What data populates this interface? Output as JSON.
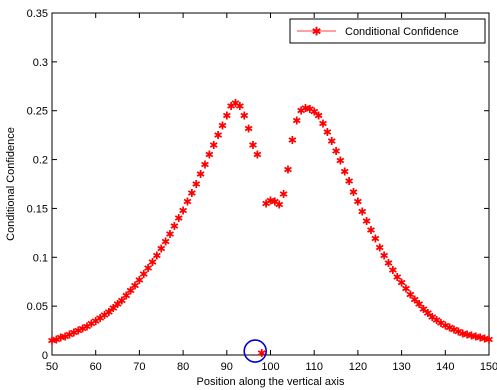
{
  "chart_data": {
    "type": "scatter",
    "title": "",
    "xlabel": "Position along the vertical axis",
    "ylabel": "Conditional Confidence",
    "xlim": [
      50,
      150
    ],
    "ylim": [
      0,
      0.35
    ],
    "xticks": [
      50,
      60,
      70,
      80,
      90,
      100,
      110,
      120,
      130,
      140,
      150
    ],
    "xtick_labels": [
      "50",
      "60",
      "70",
      "80",
      "90",
      "100",
      "110",
      "120",
      "130",
      "140",
      "150"
    ],
    "yticks": [
      0,
      0.05,
      0.1,
      0.15,
      0.2,
      0.25,
      0.3,
      0.35
    ],
    "ytick_labels": [
      "0",
      "0.05",
      "0.1",
      "0.15",
      "0.2",
      "0.25",
      "0.3",
      "0.35"
    ],
    "grid": false,
    "legend_position": "top-right",
    "series": [
      {
        "name": "Conditional Confidence",
        "color": "#ff0000",
        "marker": "asterisk",
        "x": [
          50,
          51,
          52,
          53,
          54,
          55,
          56,
          57,
          58,
          59,
          60,
          61,
          62,
          63,
          64,
          65,
          66,
          67,
          68,
          69,
          70,
          71,
          72,
          73,
          74,
          75,
          76,
          77,
          78,
          79,
          80,
          81,
          82,
          83,
          84,
          85,
          86,
          87,
          88,
          89,
          90,
          91,
          92,
          93,
          94,
          95,
          96,
          97,
          98,
          99,
          100,
          101,
          102,
          103,
          104,
          105,
          106,
          107,
          108,
          109,
          110,
          111,
          112,
          113,
          114,
          115,
          116,
          117,
          118,
          119,
          120,
          121,
          122,
          123,
          124,
          125,
          126,
          127,
          128,
          129,
          130,
          131,
          132,
          133,
          134,
          135,
          136,
          137,
          138,
          139,
          140,
          141,
          142,
          143,
          144,
          145,
          146,
          147,
          148,
          149,
          150
        ],
        "y": [
          0.015,
          0.016,
          0.018,
          0.019,
          0.021,
          0.023,
          0.025,
          0.027,
          0.029,
          0.032,
          0.035,
          0.038,
          0.041,
          0.044,
          0.048,
          0.052,
          0.056,
          0.061,
          0.066,
          0.071,
          0.077,
          0.083,
          0.089,
          0.095,
          0.102,
          0.109,
          0.116,
          0.124,
          0.132,
          0.14,
          0.148,
          0.157,
          0.166,
          0.175,
          0.185,
          0.195,
          0.205,
          0.215,
          0.225,
          0.235,
          0.245,
          0.255,
          0.258,
          0.255,
          0.245,
          0.232,
          0.215,
          0.205,
          0.002,
          0.155,
          0.158,
          0.157,
          0.154,
          0.165,
          0.19,
          0.22,
          0.24,
          0.25,
          0.253,
          0.252,
          0.249,
          0.245,
          0.237,
          0.228,
          0.219,
          0.209,
          0.199,
          0.188,
          0.178,
          0.167,
          0.157,
          0.147,
          0.137,
          0.128,
          0.119,
          0.11,
          0.102,
          0.094,
          0.087,
          0.08,
          0.074,
          0.068,
          0.062,
          0.057,
          0.052,
          0.047,
          0.043,
          0.039,
          0.036,
          0.033,
          0.03,
          0.028,
          0.026,
          0.024,
          0.022,
          0.021,
          0.02,
          0.019,
          0.018,
          0.017,
          0.016
        ]
      }
    ],
    "annotations": [
      {
        "type": "circle",
        "center_x": 96.5,
        "center_y": 0.004,
        "color": "#0000cc"
      }
    ]
  }
}
